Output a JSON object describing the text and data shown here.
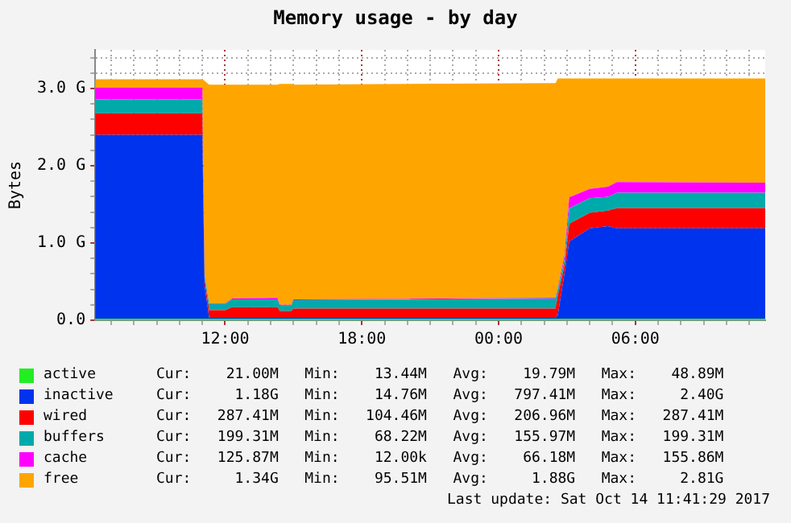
{
  "chart_data": {
    "type": "area",
    "stacked": true,
    "title": "Memory usage - by day",
    "ylabel": "Bytes",
    "x": [
      "2017-10-13T06:18",
      "2017-10-13T11:00",
      "2017-10-13T11:06",
      "2017-10-13T11:18",
      "2017-10-13T12:00",
      "2017-10-13T12:18",
      "2017-10-13T14:18",
      "2017-10-13T14:24",
      "2017-10-13T14:54",
      "2017-10-13T15:00",
      "2017-10-14T02:30",
      "2017-10-14T02:36",
      "2017-10-14T02:54",
      "2017-10-14T03:06",
      "2017-10-14T04:00",
      "2017-10-14T04:48",
      "2017-10-14T05:12",
      "2017-10-14T11:42"
    ],
    "xlim": [
      "2017-10-13T06:18",
      "2017-10-14T11:42"
    ],
    "xticks": [
      {
        "value": "2017-10-13T07:00",
        "label": null
      },
      {
        "value": "2017-10-13T08:00",
        "label": null
      },
      {
        "value": "2017-10-13T09:00",
        "label": null
      },
      {
        "value": "2017-10-13T10:00",
        "label": null
      },
      {
        "value": "2017-10-13T11:00",
        "label": null
      },
      {
        "value": "2017-10-13T12:00",
        "label": "12:00"
      },
      {
        "value": "2017-10-13T13:00",
        "label": null
      },
      {
        "value": "2017-10-13T14:00",
        "label": null
      },
      {
        "value": "2017-10-13T15:00",
        "label": null
      },
      {
        "value": "2017-10-13T16:00",
        "label": null
      },
      {
        "value": "2017-10-13T17:00",
        "label": null
      },
      {
        "value": "2017-10-13T18:00",
        "label": "18:00"
      },
      {
        "value": "2017-10-13T19:00",
        "label": null
      },
      {
        "value": "2017-10-13T20:00",
        "label": null
      },
      {
        "value": "2017-10-13T21:00",
        "label": null
      },
      {
        "value": "2017-10-13T22:00",
        "label": null
      },
      {
        "value": "2017-10-13T23:00",
        "label": null
      },
      {
        "value": "2017-10-14T00:00",
        "label": "00:00"
      },
      {
        "value": "2017-10-14T01:00",
        "label": null
      },
      {
        "value": "2017-10-14T02:00",
        "label": null
      },
      {
        "value": "2017-10-14T03:00",
        "label": null
      },
      {
        "value": "2017-10-14T04:00",
        "label": null
      },
      {
        "value": "2017-10-14T05:00",
        "label": null
      },
      {
        "value": "2017-10-14T06:00",
        "label": "06:00"
      },
      {
        "value": "2017-10-14T07:00",
        "label": null
      },
      {
        "value": "2017-10-14T08:00",
        "label": null
      },
      {
        "value": "2017-10-14T09:00",
        "label": null
      },
      {
        "value": "2017-10-14T10:00",
        "label": null
      },
      {
        "value": "2017-10-14T11:00",
        "label": null
      }
    ],
    "ylim": [
      0,
      3.5
    ],
    "yticks": [
      {
        "value": 0,
        "label": "0.0"
      },
      {
        "value": 0.2,
        "label": null
      },
      {
        "value": 0.4,
        "label": null
      },
      {
        "value": 0.6,
        "label": null
      },
      {
        "value": 0.8,
        "label": null
      },
      {
        "value": 1,
        "label": "1.0 G"
      },
      {
        "value": 1.2,
        "label": null
      },
      {
        "value": 1.4,
        "label": null
      },
      {
        "value": 1.6,
        "label": null
      },
      {
        "value": 1.8,
        "label": null
      },
      {
        "value": 2,
        "label": "2.0 G"
      },
      {
        "value": 2.2,
        "label": null
      },
      {
        "value": 2.4,
        "label": null
      },
      {
        "value": 2.6,
        "label": null
      },
      {
        "value": 2.8,
        "label": null
      },
      {
        "value": 3,
        "label": "3.0 G"
      },
      {
        "value": 3.2,
        "label": null
      },
      {
        "value": 3.4,
        "label": null
      }
    ],
    "grid": true,
    "legend": "bottom",
    "series": [
      {
        "name": "active",
        "color": "#22ee22",
        "values": [
          0.02,
          0.02,
          0.02,
          0.02,
          0.02,
          0.02,
          0.02,
          0.02,
          0.02,
          0.02,
          0.02,
          0.02,
          0.02,
          0.02,
          0.02,
          0.02,
          0.02,
          0.02
        ]
      },
      {
        "name": "inactive",
        "color": "#0033ee",
        "values": [
          2.38,
          2.38,
          0.43,
          0.01,
          0.01,
          0.01,
          0.01,
          0.01,
          0.01,
          0.01,
          0.01,
          0.05,
          0.6,
          1.0,
          1.17,
          1.2,
          1.17,
          1.17
        ]
      },
      {
        "name": "wired",
        "color": "#ff0000",
        "values": [
          0.28,
          0.28,
          0.08,
          0.1,
          0.1,
          0.14,
          0.14,
          0.09,
          0.09,
          0.12,
          0.12,
          0.25,
          0.1,
          0.23,
          0.2,
          0.2,
          0.26,
          0.26
        ]
      },
      {
        "name": "buffers",
        "color": "#00aaaa",
        "values": [
          0.18,
          0.18,
          0.05,
          0.08,
          0.08,
          0.1,
          0.1,
          0.07,
          0.07,
          0.11,
          0.13,
          0.08,
          0.07,
          0.2,
          0.19,
          0.18,
          0.2,
          0.2
        ]
      },
      {
        "name": "cache",
        "color": "#ff00ff",
        "values": [
          0.15,
          0.15,
          0.01,
          0.01,
          0.01,
          0.01,
          0.02,
          0.01,
          0.01,
          0.01,
          0.01,
          0.02,
          0.06,
          0.14,
          0.12,
          0.13,
          0.14,
          0.13
        ]
      },
      {
        "name": "free",
        "color": "#ffa500",
        "values": [
          0.11,
          0.11,
          2.51,
          2.83,
          2.83,
          2.77,
          2.76,
          2.86,
          2.86,
          2.78,
          2.78,
          2.71,
          2.28,
          1.54,
          1.43,
          1.4,
          1.34,
          1.35
        ]
      }
    ],
    "annotations": [
      "Cur:    21.00M   Min:    13.44M   Avg:    19.79M   Max:    48.89M",
      "Cur:     1.18G   Min:    14.76M   Avg:   797.41M   Max:     2.40G",
      "Cur:   287.41M   Min:   104.46M   Avg:   206.96M   Max:   287.41M",
      "Cur:   199.31M   Min:    68.22M   Avg:   155.97M   Max:   199.31M",
      "Cur:   125.87M   Min:    12.00k   Avg:    66.18M   Max:   155.86M",
      "Cur:     1.34G   Min:    95.51M   Avg:     1.88G   Max:     2.81G",
      "Last update: Sat Oct 14 11:41:29 2017"
    ]
  }
}
